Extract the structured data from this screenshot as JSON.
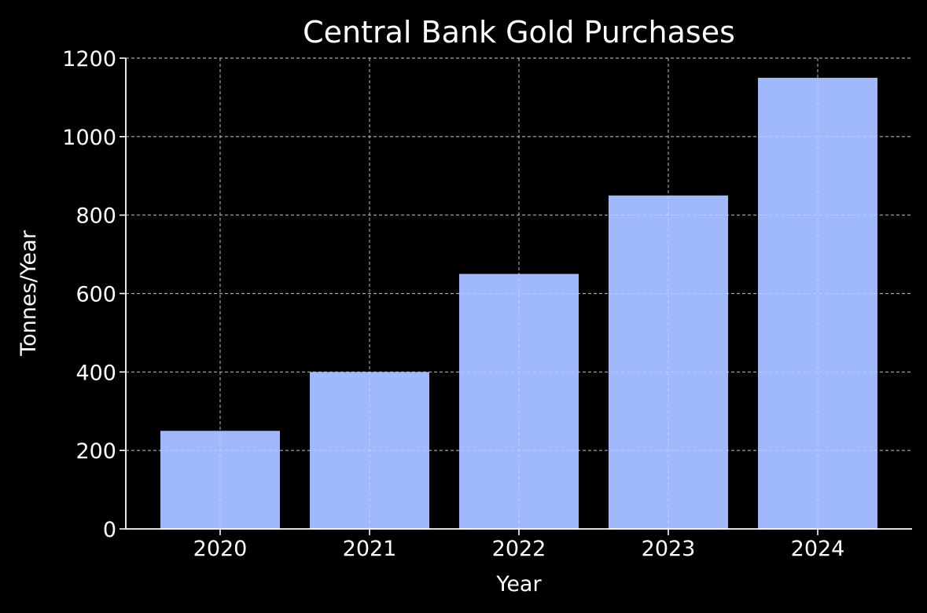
{
  "chart_data": {
    "type": "bar",
    "title": "Central Bank Gold Purchases",
    "xlabel": "Year",
    "ylabel": "Tonnes/Year",
    "categories": [
      "2020",
      "2021",
      "2022",
      "2023",
      "2024"
    ],
    "values": [
      250,
      400,
      650,
      850,
      1150
    ],
    "ylim": [
      0,
      1200
    ],
    "yticks": [
      0,
      200,
      400,
      600,
      800,
      1000,
      1200
    ],
    "grid": true,
    "colors": {
      "background": "#000000",
      "bar": "#a0b9fc",
      "axis": "#ffffff",
      "grid": "#8a8a8a",
      "text": "#ffffff"
    }
  }
}
